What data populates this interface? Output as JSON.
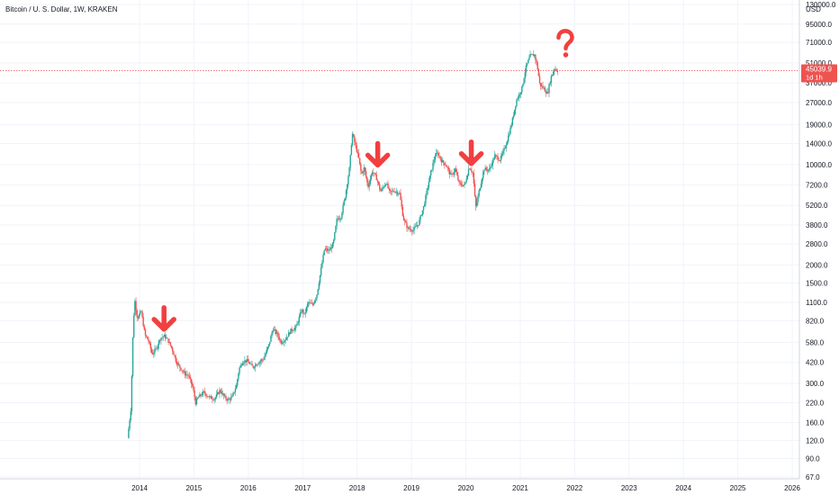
{
  "header": {
    "title": "Bitcoin / U. S. Dollar, 1W, KRAKEN"
  },
  "chart_data": {
    "type": "candlestick",
    "scale": "log",
    "ylim": [
      67,
      130000
    ],
    "currency_label": "USD",
    "y_ticks": [
      67.0,
      90.0,
      120.0,
      160.0,
      220.0,
      300.0,
      420.0,
      580.0,
      820.0,
      1100.0,
      1500.0,
      2000.0,
      2800.0,
      3800.0,
      5200.0,
      7200.0,
      10000.0,
      14000.0,
      19000.0,
      27000.0,
      37000.0,
      51000.0,
      71000.0,
      95000.0,
      130000.0
    ],
    "y_tick_labels": [
      "67.0",
      "90.0",
      "120.0",
      "160.0",
      "220.0",
      "300.0",
      "420.0",
      "580.0",
      "820.0",
      "1100.0",
      "1500.0",
      "2000.0",
      "2800.0",
      "3800.0",
      "5200.0",
      "7200.0",
      "10000.0",
      "14000.0",
      "19000.0",
      "27000.0",
      "37000.0",
      "51000.0",
      "71000.0",
      "95000.0",
      "130000.0"
    ],
    "x_ticks": [
      "2014",
      "2015",
      "2016",
      "2017",
      "2018",
      "2019",
      "2020",
      "2021",
      "2022",
      "2023",
      "2024",
      "2025",
      "2026"
    ],
    "xlim": [
      2013.8,
      2026.1
    ],
    "current_price": {
      "label": "45039.9",
      "value": 45039.9,
      "countdown": "1d 1h"
    },
    "up_color": "#26a69a",
    "down_color": "#ef5350",
    "annotation_color": "#f23f3f",
    "price_path": [
      [
        2013.8,
        125
      ],
      [
        2013.86,
        200
      ],
      [
        2013.9,
        700
      ],
      [
        2013.93,
        1150
      ],
      [
        2013.98,
        850
      ],
      [
        2014.05,
        950
      ],
      [
        2014.12,
        650
      ],
      [
        2014.18,
        600
      ],
      [
        2014.25,
        480
      ],
      [
        2014.32,
        520
      ],
      [
        2014.4,
        620
      ],
      [
        2014.48,
        640
      ],
      [
        2014.55,
        590
      ],
      [
        2014.62,
        520
      ],
      [
        2014.7,
        420
      ],
      [
        2014.78,
        380
      ],
      [
        2014.85,
        350
      ],
      [
        2014.92,
        340
      ],
      [
        2015.0,
        280
      ],
      [
        2015.05,
        220
      ],
      [
        2015.1,
        240
      ],
      [
        2015.2,
        260
      ],
      [
        2015.3,
        240
      ],
      [
        2015.4,
        235
      ],
      [
        2015.5,
        270
      ],
      [
        2015.58,
        240
      ],
      [
        2015.65,
        230
      ],
      [
        2015.72,
        240
      ],
      [
        2015.8,
        290
      ],
      [
        2015.85,
        380
      ],
      [
        2015.92,
        430
      ],
      [
        2016.0,
        430
      ],
      [
        2016.1,
        390
      ],
      [
        2016.2,
        420
      ],
      [
        2016.3,
        445
      ],
      [
        2016.4,
        560
      ],
      [
        2016.47,
        720
      ],
      [
        2016.55,
        660
      ],
      [
        2016.62,
        580
      ],
      [
        2016.7,
        610
      ],
      [
        2016.8,
        700
      ],
      [
        2016.9,
        740
      ],
      [
        2017.0,
        980
      ],
      [
        2017.05,
        900
      ],
      [
        2017.12,
        1100
      ],
      [
        2017.2,
        1050
      ],
      [
        2017.28,
        1250
      ],
      [
        2017.35,
        1800
      ],
      [
        2017.42,
        2600
      ],
      [
        2017.5,
        2500
      ],
      [
        2017.58,
        2800
      ],
      [
        2017.65,
        4200
      ],
      [
        2017.72,
        4300
      ],
      [
        2017.8,
        6000
      ],
      [
        2017.88,
        9500
      ],
      [
        2017.93,
        16500
      ],
      [
        2017.98,
        14000
      ],
      [
        2018.05,
        11000
      ],
      [
        2018.1,
        8500
      ],
      [
        2018.15,
        9500
      ],
      [
        2018.22,
        7000
      ],
      [
        2018.3,
        9000
      ],
      [
        2018.38,
        8000
      ],
      [
        2018.45,
        6500
      ],
      [
        2018.55,
        7500
      ],
      [
        2018.62,
        6400
      ],
      [
        2018.7,
        6600
      ],
      [
        2018.8,
        6300
      ],
      [
        2018.87,
        4200
      ],
      [
        2018.95,
        3600
      ],
      [
        2019.05,
        3500
      ],
      [
        2019.15,
        3900
      ],
      [
        2019.25,
        5200
      ],
      [
        2019.35,
        8000
      ],
      [
        2019.45,
        11500
      ],
      [
        2019.5,
        12000
      ],
      [
        2019.58,
        10500
      ],
      [
        2019.65,
        10000
      ],
      [
        2019.75,
        8300
      ],
      [
        2019.82,
        9300
      ],
      [
        2019.9,
        7300
      ],
      [
        2020.0,
        7200
      ],
      [
        2020.08,
        9700
      ],
      [
        2020.15,
        8700
      ],
      [
        2020.2,
        5000
      ],
      [
        2020.28,
        7000
      ],
      [
        2020.35,
        9300
      ],
      [
        2020.45,
        9200
      ],
      [
        2020.55,
        11500
      ],
      [
        2020.65,
        10800
      ],
      [
        2020.75,
        13500
      ],
      [
        2020.85,
        18500
      ],
      [
        2020.95,
        28000
      ],
      [
        2021.05,
        34000
      ],
      [
        2021.12,
        47000
      ],
      [
        2021.2,
        57000
      ],
      [
        2021.28,
        58000
      ],
      [
        2021.33,
        49000
      ],
      [
        2021.38,
        36000
      ],
      [
        2021.45,
        34000
      ],
      [
        2021.52,
        31000
      ],
      [
        2021.58,
        40000
      ],
      [
        2021.65,
        47000
      ],
      [
        2021.7,
        45039.9
      ]
    ],
    "annotations": [
      {
        "type": "arrow-down",
        "x": 2014.45,
        "y": 900
      },
      {
        "type": "arrow-down",
        "x": 2018.38,
        "y": 12500
      },
      {
        "type": "arrow-down",
        "x": 2020.1,
        "y": 12800
      },
      {
        "type": "question-mark",
        "x": 2021.82,
        "y": 70000
      }
    ]
  }
}
